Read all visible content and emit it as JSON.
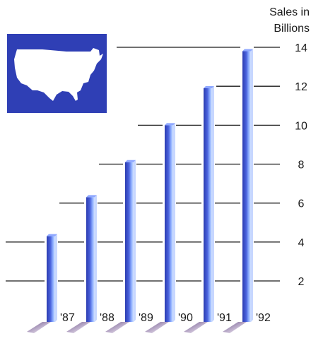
{
  "chart_data": {
    "type": "bar",
    "ylabel_lines": [
      "Sales in",
      "Billions"
    ],
    "categories": [
      "'87",
      "'88",
      "'89",
      "'90",
      "'91",
      "'92"
    ],
    "values": [
      4.3,
      6.3,
      8.1,
      10.0,
      11.9,
      13.8
    ],
    "yticks": [
      2,
      4,
      6,
      8,
      10,
      12,
      14
    ],
    "ylim": [
      0,
      14
    ],
    "grid": true,
    "bar_color": "#3a4fc8",
    "bar_highlight": "#8fa8ff",
    "shadow_color": "#5a2a7a",
    "map_background": "#2f3fb5",
    "map_fill": "#ffffff",
    "decoration": "usa-map-icon"
  }
}
